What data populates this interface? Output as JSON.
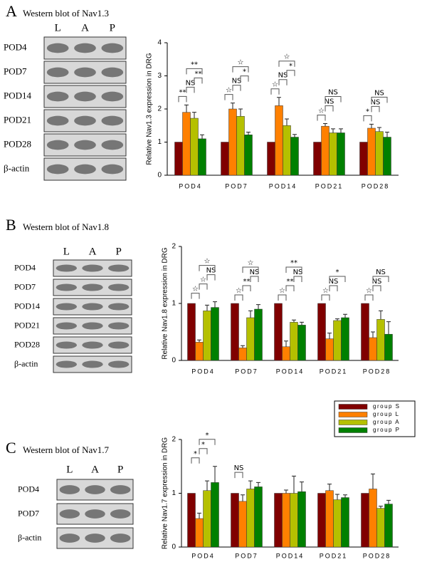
{
  "chart_data": [
    {
      "type": "bar",
      "panel": "A",
      "title": "Western blot of Nav1.3",
      "lanes": [
        "L",
        "A",
        "P"
      ],
      "blot_rows": [
        "POD4",
        "POD7",
        "POD14",
        "POD21",
        "POD28",
        "β-actin"
      ],
      "ylabel": "Relative Nav1.3 expression in DRG",
      "categories": [
        "POD4",
        "POD7",
        "POD14",
        "POD21",
        "POD28"
      ],
      "series": [
        {
          "color": "#800000",
          "values": [
            1,
            1,
            1,
            1,
            1
          ]
        },
        {
          "color": "#ff8000",
          "values": [
            1.9,
            2.0,
            2.1,
            1.48,
            1.42
          ],
          "errors": [
            0.22,
            0.18,
            0.25,
            0.08,
            0.12
          ]
        },
        {
          "color": "#b5c000",
          "values": [
            1.72,
            1.78,
            1.5,
            1.28,
            1.32
          ],
          "errors": [
            0.18,
            0.22,
            0.2,
            0.12,
            0.12
          ]
        },
        {
          "color": "#008000",
          "values": [
            1.1,
            1.22,
            1.15,
            1.28,
            1.15
          ],
          "errors": [
            0.12,
            0.08,
            0.08,
            0.12,
            0.15
          ]
        }
      ],
      "ylim": [
        0,
        4
      ],
      "yticks": [
        0,
        1,
        2,
        3,
        4
      ],
      "annotations": [
        {
          "category": 0,
          "from": 0,
          "to": 1,
          "text": "**"
        },
        {
          "category": 0,
          "from": 1,
          "to": 2,
          "text": "NS"
        },
        {
          "category": 0,
          "from": 2,
          "to": 3,
          "text": "**"
        },
        {
          "category": 0,
          "from": 1,
          "to": 3,
          "text": "**"
        },
        {
          "category": 1,
          "from": 0,
          "to": 1,
          "text": "☆"
        },
        {
          "category": 1,
          "from": 1,
          "to": 2,
          "text": "NS"
        },
        {
          "category": 1,
          "from": 2,
          "to": 3,
          "text": "*"
        },
        {
          "category": 1,
          "from": 1,
          "to": 3,
          "text": "☆"
        },
        {
          "category": 2,
          "from": 0,
          "to": 1,
          "text": "☆"
        },
        {
          "category": 2,
          "from": 1,
          "to": 2,
          "text": "NS"
        },
        {
          "category": 2,
          "from": 2,
          "to": 3,
          "text": "*"
        },
        {
          "category": 2,
          "from": 1,
          "to": 3,
          "text": "☆"
        },
        {
          "category": 3,
          "from": 0,
          "to": 1,
          "text": "☆"
        },
        {
          "category": 3,
          "from": 1,
          "to": 2,
          "text": "NS"
        },
        {
          "category": 3,
          "from": 1,
          "to": 3,
          "text": "NS"
        },
        {
          "category": 4,
          "from": 0,
          "to": 1,
          "text": "*"
        },
        {
          "category": 4,
          "from": 1,
          "to": 2,
          "text": "NS"
        },
        {
          "category": 4,
          "from": 1,
          "to": 3,
          "text": "NS"
        }
      ],
      "legend": false
    },
    {
      "type": "bar",
      "panel": "B",
      "title": "Western blot of Nav1.8",
      "lanes": [
        "L",
        "A",
        "P"
      ],
      "blot_rows": [
        "POD4",
        "POD7",
        "POD14",
        "POD21",
        "POD28",
        "β-actin"
      ],
      "ylabel": "Relative Nav1.8 expression in DRG",
      "categories": [
        "POD4",
        "POD7",
        "POD14",
        "POD21",
        "POD28"
      ],
      "series": [
        {
          "color": "#800000",
          "values": [
            1,
            1,
            1,
            1,
            1
          ]
        },
        {
          "color": "#ff8000",
          "values": [
            0.32,
            0.22,
            0.24,
            0.38,
            0.4
          ],
          "errors": [
            0.04,
            0.04,
            0.1,
            0.1,
            0.1
          ]
        },
        {
          "color": "#b5c000",
          "values": [
            0.87,
            0.75,
            0.67,
            0.7,
            0.72
          ],
          "errors": [
            0.1,
            0.12,
            0.04,
            0.03,
            0.15
          ]
        },
        {
          "color": "#008000",
          "values": [
            0.93,
            0.9,
            0.62,
            0.75,
            0.46
          ],
          "errors": [
            0.1,
            0.08,
            0.05,
            0.06,
            0.22
          ]
        }
      ],
      "ylim": [
        0,
        2
      ],
      "yticks": [
        0,
        1,
        2
      ],
      "annotations": [
        {
          "category": 0,
          "from": 0,
          "to": 1,
          "text": "☆"
        },
        {
          "category": 0,
          "from": 1,
          "to": 2,
          "text": "☆"
        },
        {
          "category": 0,
          "from": 2,
          "to": 3,
          "text": "NS"
        },
        {
          "category": 0,
          "from": 1,
          "to": 3,
          "text": "☆"
        },
        {
          "category": 1,
          "from": 0,
          "to": 1,
          "text": "☆"
        },
        {
          "category": 1,
          "from": 1,
          "to": 2,
          "text": "**"
        },
        {
          "category": 1,
          "from": 2,
          "to": 3,
          "text": "NS"
        },
        {
          "category": 1,
          "from": 1,
          "to": 3,
          "text": "☆"
        },
        {
          "category": 2,
          "from": 0,
          "to": 1,
          "text": "☆"
        },
        {
          "category": 2,
          "from": 1,
          "to": 2,
          "text": "**"
        },
        {
          "category": 2,
          "from": 2,
          "to": 3,
          "text": "NS"
        },
        {
          "category": 2,
          "from": 1,
          "to": 3,
          "text": "**"
        },
        {
          "category": 3,
          "from": 0,
          "to": 1,
          "text": "☆"
        },
        {
          "category": 3,
          "from": 1,
          "to": 2,
          "text": "NS"
        },
        {
          "category": 3,
          "from": 1,
          "to": 3,
          "text": "*"
        },
        {
          "category": 4,
          "from": 0,
          "to": 1,
          "text": "☆"
        },
        {
          "category": 4,
          "from": 1,
          "to": 2,
          "text": "NS"
        },
        {
          "category": 4,
          "from": 1,
          "to": 3,
          "text": "NS"
        }
      ],
      "legend": false
    },
    {
      "type": "bar",
      "panel": "C",
      "title": "Western blot of Nav1.7",
      "lanes": [
        "L",
        "A",
        "P"
      ],
      "blot_rows": [
        "POD4",
        "POD7",
        "β-actin"
      ],
      "ylabel": "Relative Nav1.7 expression in DRG",
      "categories": [
        "POD4",
        "POD7",
        "POD14",
        "POD21",
        "POD28"
      ],
      "series": [
        {
          "name": "group S",
          "color": "#800000",
          "values": [
            1,
            1,
            1,
            1,
            1
          ]
        },
        {
          "name": "group L",
          "color": "#ff8000",
          "values": [
            0.53,
            0.85,
            1.0,
            1.05,
            1.08
          ],
          "errors": [
            0.1,
            0.12,
            0.06,
            0.12,
            0.28
          ]
        },
        {
          "name": "group A",
          "color": "#b5c000",
          "values": [
            1.05,
            1.08,
            1.0,
            0.88,
            0.72
          ],
          "errors": [
            0.18,
            0.15,
            0.32,
            0.1,
            0.04
          ]
        },
        {
          "name": "group P",
          "color": "#008000",
          "values": [
            1.2,
            1.12,
            1.03,
            0.92,
            0.8
          ],
          "errors": [
            0.3,
            0.08,
            0.18,
            0.05,
            0.07
          ]
        }
      ],
      "ylim": [
        0,
        2
      ],
      "yticks": [
        0,
        1,
        2
      ],
      "annotations": [
        {
          "category": 0,
          "from": 0,
          "to": 1,
          "text": "*"
        },
        {
          "category": 0,
          "from": 1,
          "to": 2,
          "text": "*"
        },
        {
          "category": 0,
          "from": 1,
          "to": 3,
          "text": "*"
        },
        {
          "category": 1,
          "from": 0,
          "to": 1,
          "text": "NS"
        }
      ],
      "legend": true
    }
  ]
}
